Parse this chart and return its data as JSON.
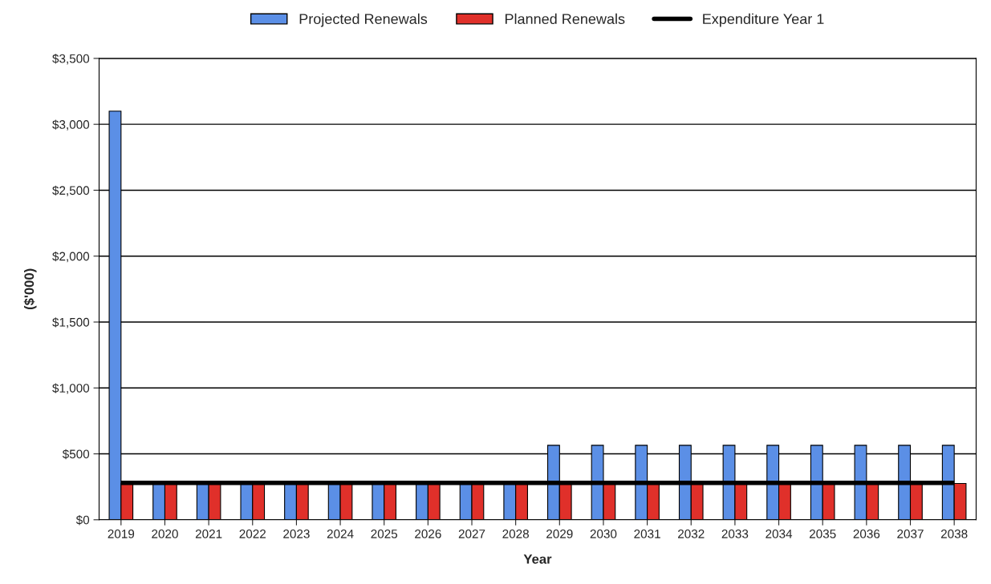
{
  "chart_data": {
    "type": "bar",
    "xlabel": "Year",
    "ylabel": "($'000)",
    "categories": [
      "2019",
      "2020",
      "2021",
      "2022",
      "2023",
      "2024",
      "2025",
      "2026",
      "2027",
      "2028",
      "2029",
      "2030",
      "2031",
      "2032",
      "2033",
      "2034",
      "2035",
      "2036",
      "2037",
      "2038"
    ],
    "series": [
      {
        "name": "Projected Renewals",
        "color": "#5b8fe6",
        "values": [
          3100,
          280,
          280,
          280,
          280,
          280,
          280,
          280,
          280,
          280,
          565,
          565,
          565,
          565,
          565,
          565,
          565,
          565,
          565,
          565
        ]
      },
      {
        "name": "Planned Renewals",
        "color": "#e0302a",
        "values": [
          275,
          275,
          275,
          275,
          275,
          275,
          275,
          275,
          275,
          275,
          275,
          275,
          275,
          275,
          275,
          275,
          275,
          275,
          275,
          275
        ]
      },
      {
        "name": "Expenditure Year 1",
        "type": "line",
        "color": "#000000",
        "values": [
          280,
          280,
          280,
          280,
          280,
          280,
          280,
          280,
          280,
          280,
          280,
          280,
          280,
          280,
          280,
          280,
          280,
          280,
          280,
          280
        ]
      }
    ],
    "ylim": [
      0,
      3500
    ],
    "yticks": [
      {
        "value": 0,
        "label": "$0"
      },
      {
        "value": 500,
        "label": "$500"
      },
      {
        "value": 1000,
        "label": "$1,000"
      },
      {
        "value": 1500,
        "label": "$1,500"
      },
      {
        "value": 2000,
        "label": "$2,000"
      },
      {
        "value": 2500,
        "label": "$2,500"
      },
      {
        "value": 3000,
        "label": "$3,000"
      },
      {
        "value": 3500,
        "label": "$3,500"
      }
    ],
    "grid": "y",
    "legend": "top"
  }
}
